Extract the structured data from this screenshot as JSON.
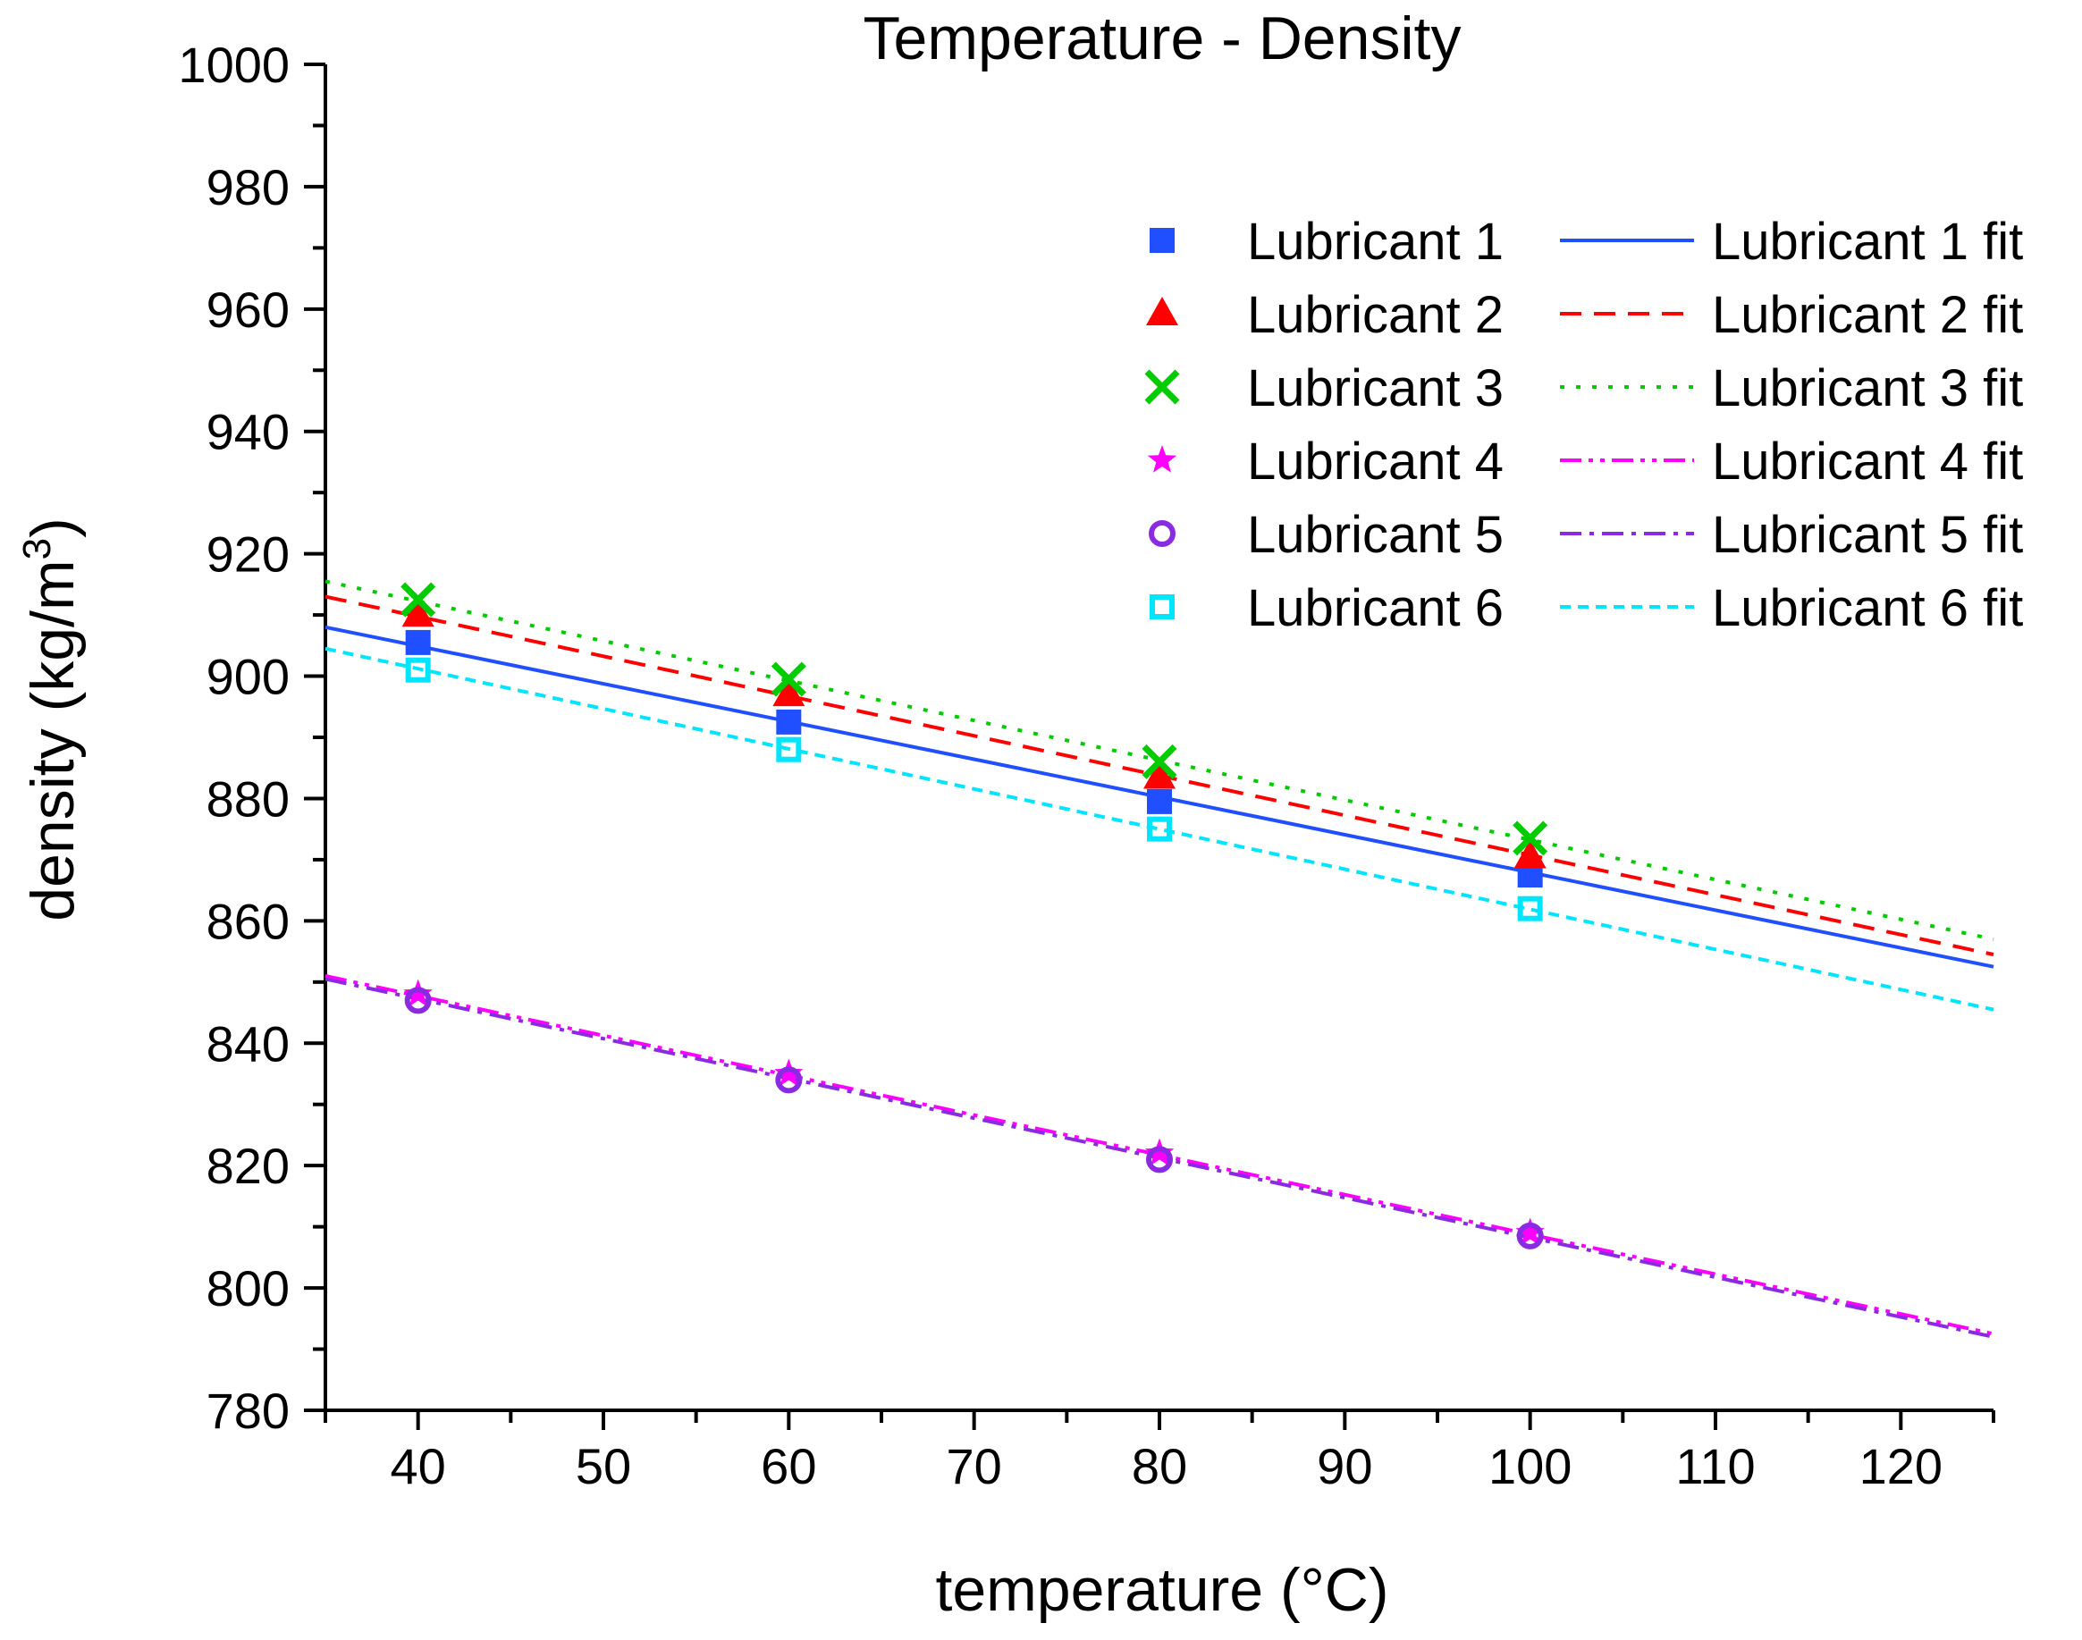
{
  "chart_data": {
    "type": "scatter",
    "title": "Temperature - Density",
    "xlabel": "temperature (°C)",
    "ylabel_main": "density (kg/m",
    "ylabel_sup": "3",
    "ylabel_end": ")",
    "xlim": [
      35,
      125
    ],
    "ylim": [
      780,
      1000
    ],
    "xticks": [
      40,
      50,
      60,
      70,
      80,
      90,
      100,
      110,
      120
    ],
    "yticks": [
      780,
      800,
      820,
      840,
      860,
      880,
      900,
      920,
      940,
      960,
      980,
      1000
    ],
    "legend_position": "top-right",
    "series": [
      {
        "name": "Lubricant 1",
        "fit_name": "Lubricant 1 fit",
        "color": "#1f4fff",
        "marker": "square",
        "x": [
          40,
          60,
          80,
          100
        ],
        "y": [
          905.5,
          892.5,
          879.5,
          867.5
        ],
        "fit": {
          "x": [
            35,
            125
          ],
          "y": [
            908.0,
            852.5
          ],
          "dash": "solid"
        }
      },
      {
        "name": "Lubricant 2",
        "fit_name": "Lubricant 2 fit",
        "color": "#ff0000",
        "marker": "triangle",
        "x": [
          40,
          60,
          80,
          100
        ],
        "y": [
          910.0,
          897.0,
          883.5,
          870.5
        ],
        "fit": {
          "x": [
            35,
            125
          ],
          "y": [
            913.0,
            854.5
          ],
          "dash": "dash"
        }
      },
      {
        "name": "Lubricant 3",
        "fit_name": "Lubricant 3 fit",
        "color": "#00cc00",
        "marker": "x",
        "x": [
          40,
          60,
          80,
          100
        ],
        "y": [
          912.5,
          899.5,
          886.0,
          873.5
        ],
        "fit": {
          "x": [
            35,
            125
          ],
          "y": [
            915.5,
            857.0
          ],
          "dash": "dot"
        }
      },
      {
        "name": "Lubricant 4",
        "fit_name": "Lubricant 4 fit",
        "color": "#ff00ff",
        "marker": "star",
        "x": [
          40,
          60,
          80,
          100
        ],
        "y": [
          848.0,
          835.0,
          822.0,
          809.0
        ],
        "fit": {
          "x": [
            35,
            125
          ],
          "y": [
            851.0,
            792.5
          ],
          "dash": "dashdotdot"
        }
      },
      {
        "name": "Lubricant 5",
        "fit_name": "Lubricant 5 fit",
        "color": "#8a2be2",
        "marker": "circle",
        "x": [
          40,
          60,
          80,
          100
        ],
        "y": [
          847.0,
          834.0,
          821.0,
          808.5
        ],
        "fit": {
          "x": [
            35,
            125
          ],
          "y": [
            850.5,
            792.0
          ],
          "dash": "dashdot"
        }
      },
      {
        "name": "Lubricant 6",
        "fit_name": "Lubricant 6 fit",
        "color": "#00e5ff",
        "marker": "open-square",
        "x": [
          40,
          60,
          80,
          100
        ],
        "y": [
          901.0,
          888.0,
          875.0,
          862.0
        ],
        "fit": {
          "x": [
            35,
            125
          ],
          "y": [
            904.5,
            845.5
          ],
          "dash": "shortdash"
        }
      }
    ]
  }
}
